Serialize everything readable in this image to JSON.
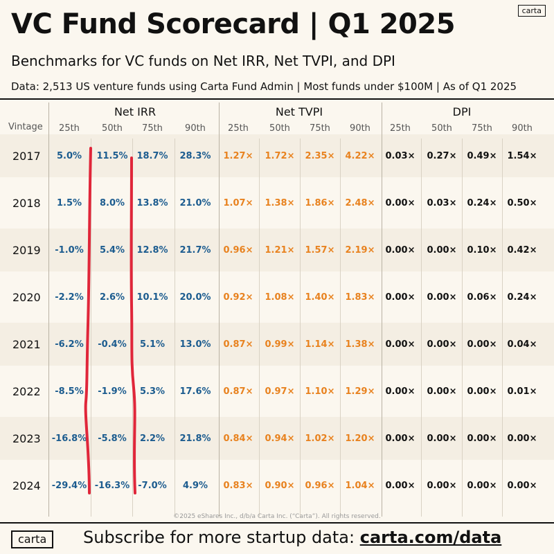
{
  "brand": "carta",
  "title": "VC Fund Scorecard | Q1 2025",
  "subtitle": "Benchmarks for VC funds on Net IRR, Net TVPI, and DPI",
  "source": "Data: 2,513 US venture funds using Carta Fund Admin | Most funds under $100M | As of Q1 2025",
  "copyright": "©2025 eShares Inc., d/b/a Carta Inc. (“Carta”). All rights reserved.",
  "footer": {
    "cta_text": "Subscribe for more startup data: ",
    "cta_link": "carta.com/data"
  },
  "colors": {
    "irr": "#1c5c8f",
    "tvpi": "#e8821f",
    "dpi": "#111111",
    "annotation": "#e0263a"
  },
  "chart_data": {
    "type": "table",
    "row_header": "Vintage",
    "column_groups": [
      {
        "name": "Net IRR",
        "columns": [
          "25th",
          "50th",
          "75th",
          "90th"
        ]
      },
      {
        "name": "Net TVPI",
        "columns": [
          "25th",
          "50th",
          "75th",
          "90th"
        ]
      },
      {
        "name": "DPI",
        "columns": [
          "25th",
          "50th",
          "75th",
          "90th"
        ]
      }
    ],
    "rows": [
      {
        "vintage": "2017",
        "irr": [
          "5.0%",
          "11.5%",
          "18.7%",
          "28.3%"
        ],
        "tvpi": [
          "1.27×",
          "1.72×",
          "2.35×",
          "4.22×"
        ],
        "dpi": [
          "0.03×",
          "0.27×",
          "0.49×",
          "1.54×"
        ]
      },
      {
        "vintage": "2018",
        "irr": [
          "1.5%",
          "8.0%",
          "13.8%",
          "21.0%"
        ],
        "tvpi": [
          "1.07×",
          "1.38×",
          "1.86×",
          "2.48×"
        ],
        "dpi": [
          "0.00×",
          "0.03×",
          "0.24×",
          "0.50×"
        ]
      },
      {
        "vintage": "2019",
        "irr": [
          "-1.0%",
          "5.4%",
          "12.8%",
          "21.7%"
        ],
        "tvpi": [
          "0.96×",
          "1.21×",
          "1.57×",
          "2.19×"
        ],
        "dpi": [
          "0.00×",
          "0.00×",
          "0.10×",
          "0.42×"
        ]
      },
      {
        "vintage": "2020",
        "irr": [
          "-2.2%",
          "2.6%",
          "10.1%",
          "20.0%"
        ],
        "tvpi": [
          "0.92×",
          "1.08×",
          "1.40×",
          "1.83×"
        ],
        "dpi": [
          "0.00×",
          "0.00×",
          "0.06×",
          "0.24×"
        ]
      },
      {
        "vintage": "2021",
        "irr": [
          "-6.2%",
          "-0.4%",
          "5.1%",
          "13.0%"
        ],
        "tvpi": [
          "0.87×",
          "0.99×",
          "1.14×",
          "1.38×"
        ],
        "dpi": [
          "0.00×",
          "0.00×",
          "0.00×",
          "0.04×"
        ]
      },
      {
        "vintage": "2022",
        "irr": [
          "-8.5%",
          "-1.9%",
          "5.3%",
          "17.6%"
        ],
        "tvpi": [
          "0.87×",
          "0.97×",
          "1.10×",
          "1.29×"
        ],
        "dpi": [
          "0.00×",
          "0.00×",
          "0.00×",
          "0.01×"
        ]
      },
      {
        "vintage": "2023",
        "irr": [
          "-16.8%",
          "-5.8%",
          "2.2%",
          "21.8%"
        ],
        "tvpi": [
          "0.84×",
          "0.94×",
          "1.02×",
          "1.20×"
        ],
        "dpi": [
          "0.00×",
          "0.00×",
          "0.00×",
          "0.00×"
        ]
      },
      {
        "vintage": "2024",
        "irr": [
          "-29.4%",
          "-16.3%",
          "-7.0%",
          "4.9%"
        ],
        "tvpi": [
          "0.83×",
          "0.90×",
          "0.96×",
          "1.04×"
        ],
        "dpi": [
          "0.00×",
          "0.00×",
          "0.00×",
          "0.00×"
        ]
      }
    ]
  }
}
